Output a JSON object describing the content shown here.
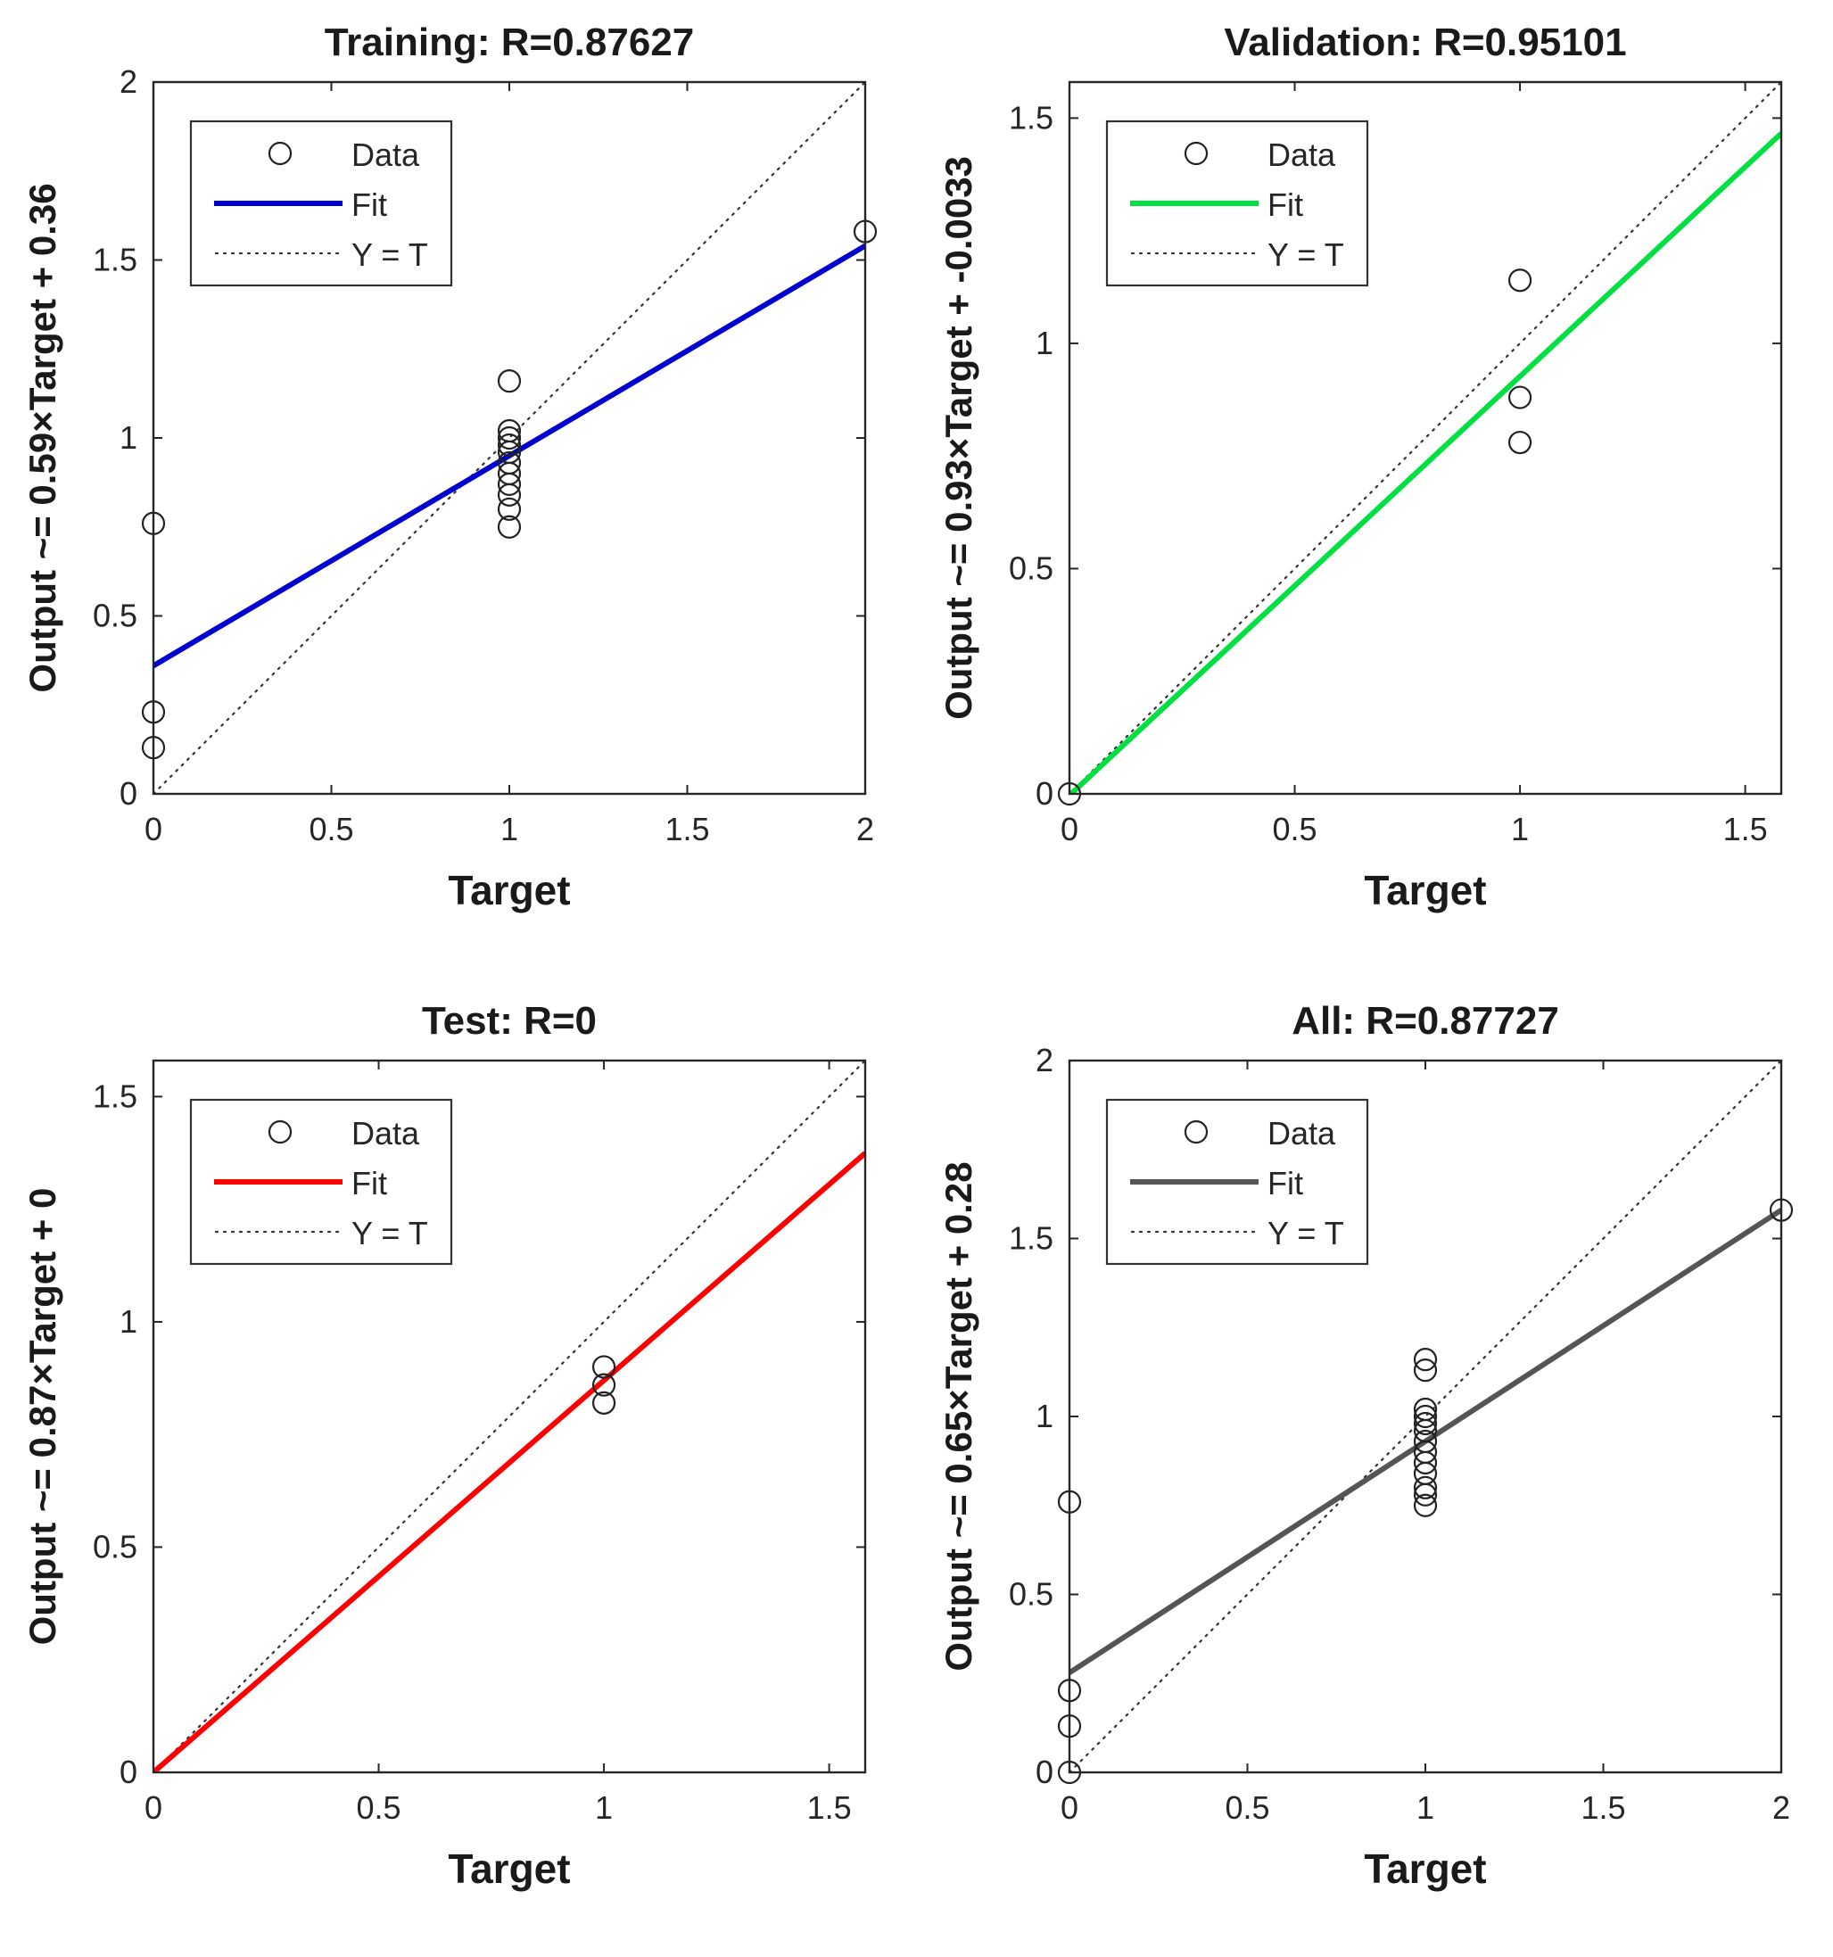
{
  "chart_data": [
    {
      "type": "scatter",
      "panel": "training",
      "title": "Training: R=0.87627",
      "xlabel": "Target",
      "ylabel": "Output ~= 0.59×Target + 0.36",
      "xlim": [
        0,
        2
      ],
      "ylim": [
        0,
        2
      ],
      "xticks": [
        0,
        0.5,
        1,
        1.5,
        2
      ],
      "xtick_labels": [
        "0",
        "0.5",
        "1",
        "1.5",
        "2"
      ],
      "yticks": [
        0,
        0.5,
        1,
        1.5,
        2
      ],
      "ytick_labels": [
        "0",
        "0.5",
        "1",
        "1.5",
        "2"
      ],
      "fit": {
        "slope": 0.59,
        "intercept": 0.36,
        "color": "#0000d0"
      },
      "points": [
        [
          0,
          0.76
        ],
        [
          0,
          0.23
        ],
        [
          0,
          0.13
        ],
        [
          1,
          1.16
        ],
        [
          1,
          1.02
        ],
        [
          1,
          1.0
        ],
        [
          1,
          0.98
        ],
        [
          1,
          0.96
        ],
        [
          1,
          0.93
        ],
        [
          1,
          0.9
        ],
        [
          1,
          0.87
        ],
        [
          1,
          0.84
        ],
        [
          1,
          0.8
        ],
        [
          1,
          0.75
        ],
        [
          2,
          1.58
        ]
      ],
      "legend": {
        "data": "Data",
        "fit": "Fit",
        "yt": "Y = T"
      }
    },
    {
      "type": "scatter",
      "panel": "validation",
      "title": "Validation: R=0.95101",
      "xlabel": "Target",
      "ylabel": "Output ~= 0.93×Target + -0.0033",
      "xlim": [
        0,
        1.58
      ],
      "ylim": [
        0,
        1.58
      ],
      "xticks": [
        0,
        0.5,
        1,
        1.5
      ],
      "xtick_labels": [
        "0",
        "0.5",
        "1",
        "1.5"
      ],
      "yticks": [
        0,
        0.5,
        1,
        1.5
      ],
      "ytick_labels": [
        "0",
        "0.5",
        "1",
        "1.5"
      ],
      "fit": {
        "slope": 0.93,
        "intercept": -0.0033,
        "color": "#00e040"
      },
      "points": [
        [
          0,
          0
        ],
        [
          1,
          1.14
        ],
        [
          1,
          0.88
        ],
        [
          1,
          0.78
        ]
      ],
      "legend": {
        "data": "Data",
        "fit": "Fit",
        "yt": "Y = T"
      }
    },
    {
      "type": "scatter",
      "panel": "test",
      "title": "Test: R=0",
      "xlabel": "Target",
      "ylabel": "Output ~= 0.87×Target + 0",
      "xlim": [
        0,
        1.58
      ],
      "ylim": [
        0,
        1.58
      ],
      "xticks": [
        0,
        0.5,
        1,
        1.5
      ],
      "xtick_labels": [
        "0",
        "0.5",
        "1",
        "1.5"
      ],
      "yticks": [
        0,
        0.5,
        1,
        1.5
      ],
      "ytick_labels": [
        "0",
        "0.5",
        "1",
        "1.5"
      ],
      "fit": {
        "slope": 0.87,
        "intercept": 0,
        "color": "#ff0000"
      },
      "points": [
        [
          1,
          0.9
        ],
        [
          1,
          0.86
        ],
        [
          1,
          0.82
        ]
      ],
      "legend": {
        "data": "Data",
        "fit": "Fit",
        "yt": "Y = T"
      }
    },
    {
      "type": "scatter",
      "panel": "all",
      "title": "All: R=0.87727",
      "xlabel": "Target",
      "ylabel": "Output ~= 0.65×Target + 0.28",
      "xlim": [
        0,
        2
      ],
      "ylim": [
        0,
        2
      ],
      "xticks": [
        0,
        0.5,
        1,
        1.5,
        2
      ],
      "xtick_labels": [
        "0",
        "0.5",
        "1",
        "1.5",
        "2"
      ],
      "yticks": [
        0,
        0.5,
        1,
        1.5,
        2
      ],
      "ytick_labels": [
        "0",
        "0.5",
        "1",
        "1.5",
        "2"
      ],
      "fit": {
        "slope": 0.65,
        "intercept": 0.28,
        "color": "#555555"
      },
      "points": [
        [
          0,
          0.76
        ],
        [
          0,
          0.23
        ],
        [
          0,
          0.13
        ],
        [
          0,
          0
        ],
        [
          1,
          1.16
        ],
        [
          1,
          1.13
        ],
        [
          1,
          1.02
        ],
        [
          1,
          1.0
        ],
        [
          1,
          0.98
        ],
        [
          1,
          0.96
        ],
        [
          1,
          0.93
        ],
        [
          1,
          0.9
        ],
        [
          1,
          0.87
        ],
        [
          1,
          0.84
        ],
        [
          1,
          0.8
        ],
        [
          1,
          0.78
        ],
        [
          1,
          0.75
        ],
        [
          2,
          1.58
        ]
      ],
      "legend": {
        "data": "Data",
        "fit": "Fit",
        "yt": "Y = T"
      }
    }
  ]
}
